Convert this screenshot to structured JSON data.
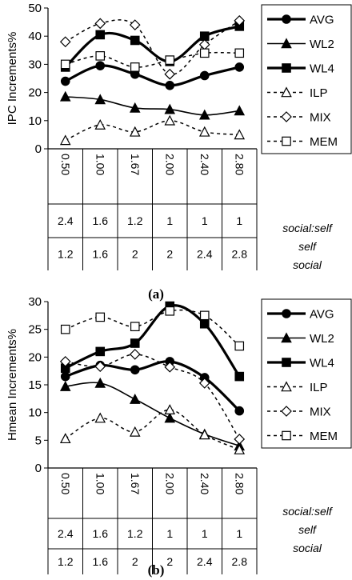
{
  "chart_data": [
    {
      "type": "line",
      "panel_label": "(a)",
      "ylabel": "IPC Increments%",
      "ylim": [
        0,
        50
      ],
      "yticks": [
        "0",
        "10",
        "20",
        "30",
        "40",
        "50"
      ],
      "categories": [
        "0.50",
        "1.00",
        "1.67",
        "2.00",
        "2.40",
        "2.80"
      ],
      "row2": [
        "2.4",
        "1.6",
        "1.2",
        "1",
        "1",
        "1"
      ],
      "row3": [
        "1.2",
        "1.6",
        "2",
        "2",
        "2.4",
        "2.8"
      ],
      "row_labels": [
        "social:self",
        "self",
        "social"
      ],
      "legend_position": "right",
      "x": [
        0,
        1,
        2,
        3,
        4,
        5,
        6,
        7,
        8,
        9,
        10,
        11
      ],
      "series": [
        {
          "name": "AVG",
          "values": [
            24,
            null,
            29.5,
            null,
            26.5,
            null,
            22.5,
            null,
            26,
            null,
            29,
            null
          ]
        },
        {
          "name": "WL2",
          "values": [
            18.5,
            null,
            17.5,
            null,
            14.5,
            null,
            14,
            null,
            12,
            null,
            13.5,
            null
          ]
        },
        {
          "name": "WL4",
          "values": [
            29,
            null,
            40.5,
            null,
            38.5,
            null,
            31,
            null,
            40,
            null,
            43.5,
            null
          ]
        },
        {
          "name": "ILP",
          "values": [
            3,
            null,
            8.5,
            null,
            6,
            null,
            10,
            null,
            6,
            null,
            5,
            null
          ]
        },
        {
          "name": "MIX",
          "values": [
            38,
            null,
            44.5,
            null,
            44,
            null,
            26.5,
            null,
            37,
            null,
            45.5,
            null
          ]
        },
        {
          "name": "MEM",
          "values": [
            30,
            null,
            33,
            null,
            29,
            null,
            31.5,
            null,
            34,
            null,
            34,
            null
          ]
        }
      ]
    },
    {
      "type": "line",
      "panel_label": "(b)",
      "ylabel": "Hmean Increments%",
      "ylim": [
        0,
        30
      ],
      "yticks": [
        "0",
        "5",
        "10",
        "15",
        "20",
        "25",
        "30"
      ],
      "categories": [
        "0.50",
        "1.00",
        "1.67",
        "2.00",
        "2.40",
        "2.80"
      ],
      "row2": [
        "2.4",
        "1.6",
        "1.2",
        "1",
        "1",
        "1"
      ],
      "row3": [
        "1.2",
        "1.6",
        "2",
        "2",
        "2.4",
        "2.8"
      ],
      "row_labels": [
        "social:self",
        "self",
        "social"
      ],
      "legend_position": "right",
      "series": [
        {
          "name": "AVG",
          "values": [
            16.5,
            18.5,
            17.7,
            19.2,
            16.3,
            10.3
          ]
        },
        {
          "name": "WL2",
          "values": [
            14.7,
            15.3,
            12.4,
            9,
            6.1,
            4
          ]
        },
        {
          "name": "WL4",
          "values": [
            18,
            21,
            22.5,
            29.2,
            26,
            16.5
          ]
        },
        {
          "name": "ILP",
          "values": [
            5.3,
            9,
            6.5,
            10.5,
            6,
            3.3
          ]
        },
        {
          "name": "MIX",
          "values": [
            19.2,
            18.3,
            20.5,
            18.2,
            15.3,
            5.2
          ]
        },
        {
          "name": "MEM",
          "values": [
            25,
            27.2,
            25.5,
            28.3,
            27.5,
            22
          ]
        }
      ]
    }
  ]
}
